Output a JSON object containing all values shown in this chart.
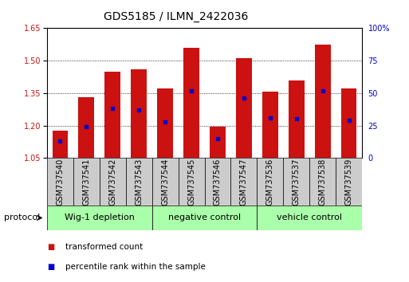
{
  "title": "GDS5185 / ILMN_2422036",
  "samples": [
    "GSM737540",
    "GSM737541",
    "GSM737542",
    "GSM737543",
    "GSM737544",
    "GSM737545",
    "GSM737546",
    "GSM737547",
    "GSM737536",
    "GSM737537",
    "GSM737538",
    "GSM737539"
  ],
  "transformed_counts": [
    1.175,
    1.33,
    1.45,
    1.46,
    1.37,
    1.56,
    1.195,
    1.51,
    1.355,
    1.41,
    1.575,
    1.37
  ],
  "percentile_ranks": [
    13,
    24,
    38,
    37,
    28,
    52,
    15,
    46,
    31,
    30,
    52,
    29
  ],
  "groups": [
    {
      "label": "Wig-1 depletion",
      "indices": [
        0,
        1,
        2,
        3
      ]
    },
    {
      "label": "negative control",
      "indices": [
        4,
        5,
        6,
        7
      ]
    },
    {
      "label": "vehicle control",
      "indices": [
        8,
        9,
        10,
        11
      ]
    }
  ],
  "bar_color": "#cc1111",
  "marker_color": "#0000cc",
  "bar_width": 0.6,
  "ylim_left": [
    1.05,
    1.65
  ],
  "ylim_right": [
    0,
    100
  ],
  "yticks_left": [
    1.05,
    1.2,
    1.35,
    1.5,
    1.65
  ],
  "yticks_right": [
    0,
    25,
    50,
    75,
    100
  ],
  "ytick_labels_right": [
    "0",
    "25",
    "50",
    "75",
    "100%"
  ],
  "group_bg_color": "#aaffaa",
  "sample_bg_color": "#cccccc",
  "bg_color": "#ffffff",
  "grid_color": "#000000",
  "title_fontsize": 10,
  "tick_fontsize": 7,
  "label_fontsize": 7,
  "group_fontsize": 8,
  "legend_fontsize": 7.5,
  "protocol_fontsize": 8
}
